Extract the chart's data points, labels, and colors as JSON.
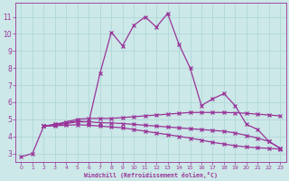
{
  "title": "",
  "xlabel": "Windchill (Refroidissement éolien,°C)",
  "bg_color": "#cce8e8",
  "line_color": "#993399",
  "grid_color": "#aad4d4",
  "xlim": [
    -0.5,
    23.5
  ],
  "ylim": [
    2.5,
    11.8
  ],
  "xticks": [
    0,
    1,
    2,
    3,
    4,
    5,
    6,
    7,
    8,
    9,
    10,
    11,
    12,
    13,
    14,
    15,
    16,
    17,
    18,
    19,
    20,
    21,
    22,
    23
  ],
  "yticks": [
    3,
    4,
    5,
    6,
    7,
    8,
    9,
    10,
    11
  ],
  "line_main_x": [
    0,
    1,
    2,
    3,
    4,
    5,
    6,
    7,
    8,
    9,
    10,
    11,
    12,
    13,
    14,
    15,
    16,
    17,
    18,
    19,
    20,
    21,
    22,
    23
  ],
  "line_main_y": [
    2.8,
    3.0,
    4.6,
    4.7,
    4.8,
    4.9,
    4.85,
    7.7,
    10.1,
    9.3,
    10.5,
    11.0,
    10.4,
    11.2,
    9.4,
    8.0,
    5.8,
    6.2,
    6.5,
    5.8,
    4.7,
    4.4,
    3.7,
    3.3
  ],
  "line_flat1_x": [
    2,
    3,
    4,
    5,
    6,
    7,
    8,
    9,
    10,
    11,
    12,
    13,
    14,
    15,
    16,
    17,
    18,
    19,
    20,
    21,
    22,
    23
  ],
  "line_flat1_y": [
    4.6,
    4.7,
    4.85,
    5.0,
    5.05,
    5.05,
    5.05,
    5.1,
    5.15,
    5.2,
    5.25,
    5.3,
    5.35,
    5.4,
    5.4,
    5.4,
    5.4,
    5.38,
    5.35,
    5.3,
    5.25,
    5.2
  ],
  "line_flat2_x": [
    2,
    3,
    4,
    5,
    6,
    7,
    8,
    9,
    10,
    11,
    12,
    13,
    14,
    15,
    16,
    17,
    18,
    19,
    20,
    21,
    22,
    23
  ],
  "line_flat2_y": [
    4.6,
    4.65,
    4.75,
    4.85,
    4.85,
    4.8,
    4.78,
    4.75,
    4.7,
    4.65,
    4.6,
    4.55,
    4.5,
    4.45,
    4.4,
    4.35,
    4.3,
    4.2,
    4.05,
    3.9,
    3.7,
    3.3
  ],
  "line_decl_x": [
    2,
    3,
    4,
    5,
    6,
    7,
    8,
    9,
    10,
    11,
    12,
    13,
    14,
    15,
    16,
    17,
    18,
    19,
    20,
    21,
    22,
    23
  ],
  "line_decl_y": [
    4.6,
    4.62,
    4.65,
    4.68,
    4.65,
    4.6,
    4.55,
    4.5,
    4.4,
    4.3,
    4.2,
    4.1,
    4.0,
    3.9,
    3.78,
    3.65,
    3.55,
    3.45,
    3.38,
    3.33,
    3.3,
    3.25
  ]
}
